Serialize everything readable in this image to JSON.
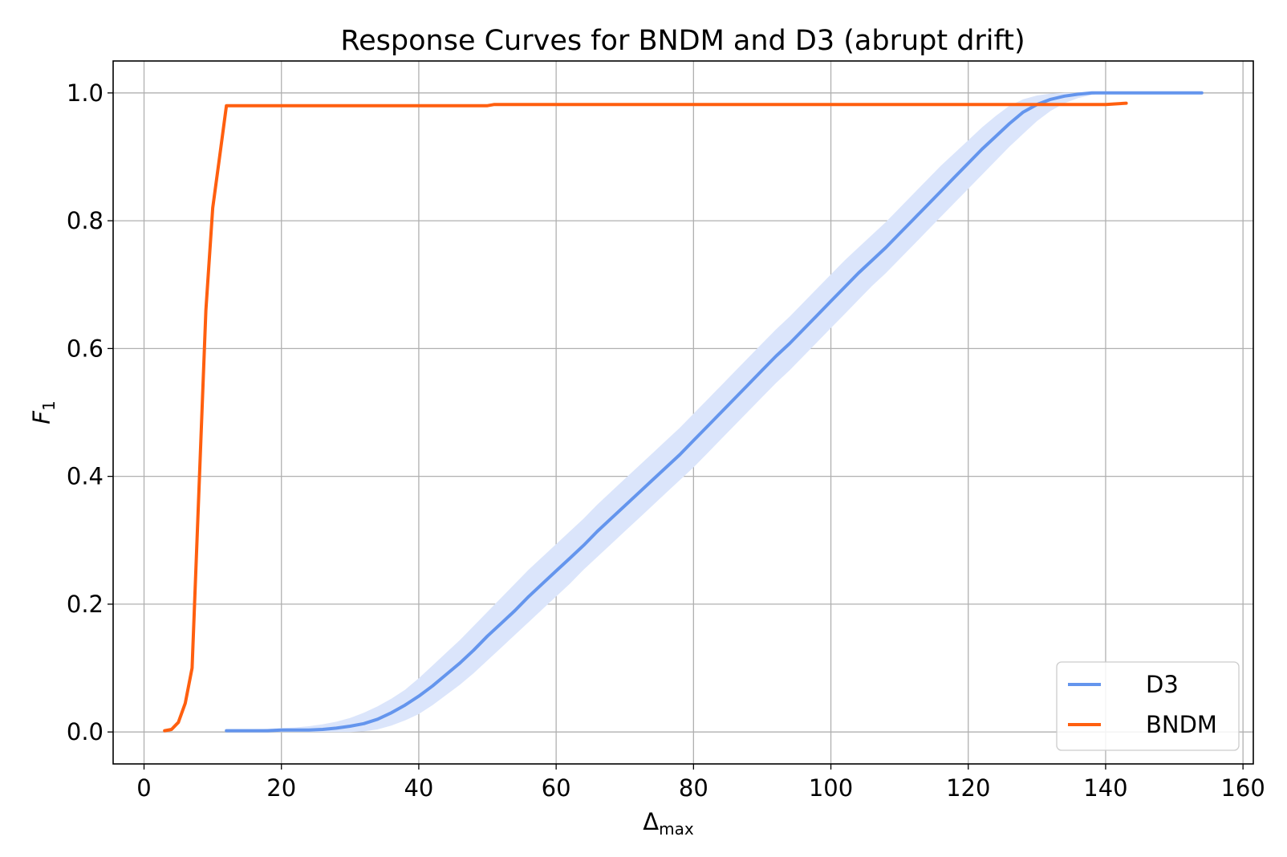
{
  "chart_data": {
    "type": "line",
    "title": "Response Curves for BNDM and D3 (abrupt drift)",
    "xlabel_main": "Δ",
    "xlabel_sub": "max",
    "ylabel_main": "F",
    "ylabel_sub": "1",
    "xlim": [
      -4.5,
      161.5
    ],
    "ylim": [
      -0.05,
      1.05
    ],
    "xticks": [
      0,
      20,
      40,
      60,
      80,
      100,
      120,
      140,
      160
    ],
    "yticks": [
      0.0,
      0.2,
      0.4,
      0.6,
      0.8,
      1.0
    ],
    "ytick_labels": [
      "0.0",
      "0.2",
      "0.4",
      "0.6",
      "0.8",
      "1.0"
    ],
    "grid": true,
    "legend_position": "lower-right",
    "series": [
      {
        "name": "D3",
        "color": "#6495ED",
        "band_color": "#dbe5fb",
        "x": [
          12,
          14,
          16,
          18,
          20,
          22,
          24,
          26,
          28,
          30,
          32,
          34,
          36,
          38,
          40,
          42,
          44,
          46,
          48,
          50,
          52,
          54,
          56,
          58,
          60,
          62,
          64,
          66,
          68,
          70,
          72,
          74,
          76,
          78,
          80,
          82,
          84,
          86,
          88,
          90,
          92,
          94,
          96,
          98,
          100,
          102,
          104,
          106,
          108,
          110,
          112,
          114,
          116,
          118,
          120,
          122,
          124,
          126,
          128,
          130,
          132,
          134,
          136,
          138,
          140,
          142,
          144,
          146,
          148,
          150,
          152,
          154
        ],
        "y": [
          0.002,
          0.002,
          0.002,
          0.002,
          0.003,
          0.003,
          0.003,
          0.004,
          0.006,
          0.009,
          0.013,
          0.02,
          0.03,
          0.042,
          0.056,
          0.072,
          0.09,
          0.108,
          0.128,
          0.15,
          0.17,
          0.19,
          0.212,
          0.232,
          0.252,
          0.272,
          0.292,
          0.314,
          0.334,
          0.354,
          0.374,
          0.394,
          0.414,
          0.434,
          0.456,
          0.478,
          0.5,
          0.522,
          0.544,
          0.566,
          0.588,
          0.608,
          0.63,
          0.652,
          0.674,
          0.696,
          0.718,
          0.738,
          0.758,
          0.78,
          0.802,
          0.824,
          0.846,
          0.868,
          0.89,
          0.912,
          0.932,
          0.952,
          0.97,
          0.982,
          0.99,
          0.995,
          0.998,
          1.0,
          1.0,
          1.0,
          1.0,
          1.0,
          1.0,
          1.0,
          1.0,
          1.0
        ],
        "y_lower": [
          0.0,
          0.0,
          0.0,
          0.0,
          0.0,
          0.0,
          0.0,
          0.0,
          0.0,
          0.0,
          0.001,
          0.004,
          0.01,
          0.018,
          0.028,
          0.042,
          0.058,
          0.074,
          0.092,
          0.112,
          0.132,
          0.152,
          0.172,
          0.192,
          0.212,
          0.232,
          0.254,
          0.274,
          0.294,
          0.314,
          0.334,
          0.354,
          0.374,
          0.394,
          0.414,
          0.436,
          0.458,
          0.48,
          0.502,
          0.524,
          0.546,
          0.566,
          0.588,
          0.61,
          0.632,
          0.654,
          0.676,
          0.698,
          0.718,
          0.74,
          0.762,
          0.784,
          0.806,
          0.828,
          0.85,
          0.872,
          0.894,
          0.916,
          0.936,
          0.956,
          0.972,
          0.984,
          0.992,
          0.997,
          1.0,
          1.0,
          1.0,
          1.0,
          1.0,
          1.0,
          1.0,
          1.0
        ],
        "y_upper": [
          0.004,
          0.004,
          0.004,
          0.005,
          0.006,
          0.007,
          0.009,
          0.012,
          0.016,
          0.022,
          0.03,
          0.04,
          0.052,
          0.066,
          0.084,
          0.104,
          0.124,
          0.144,
          0.166,
          0.188,
          0.21,
          0.232,
          0.254,
          0.274,
          0.294,
          0.314,
          0.334,
          0.356,
          0.376,
          0.396,
          0.416,
          0.436,
          0.456,
          0.476,
          0.498,
          0.52,
          0.542,
          0.564,
          0.586,
          0.608,
          0.63,
          0.65,
          0.672,
          0.694,
          0.716,
          0.738,
          0.758,
          0.778,
          0.798,
          0.82,
          0.842,
          0.864,
          0.886,
          0.906,
          0.926,
          0.946,
          0.964,
          0.98,
          0.99,
          0.996,
          0.999,
          1.0,
          1.0,
          1.0,
          1.0,
          1.0,
          1.0,
          1.0,
          1.0,
          1.0,
          1.0,
          1.0
        ]
      },
      {
        "name": "BNDM",
        "color": "#FF5F0F",
        "x": [
          3,
          4,
          5,
          6,
          7,
          8,
          9,
          10,
          11,
          12,
          14,
          20,
          30,
          40,
          50,
          51,
          60,
          70,
          80,
          90,
          100,
          110,
          120,
          130,
          134,
          140,
          143
        ],
        "y": [
          0.002,
          0.004,
          0.015,
          0.045,
          0.1,
          0.38,
          0.66,
          0.82,
          0.9,
          0.98,
          0.98,
          0.98,
          0.98,
          0.98,
          0.98,
          0.982,
          0.982,
          0.982,
          0.982,
          0.982,
          0.982,
          0.982,
          0.982,
          0.982,
          0.982,
          0.982,
          0.984
        ]
      }
    ]
  }
}
